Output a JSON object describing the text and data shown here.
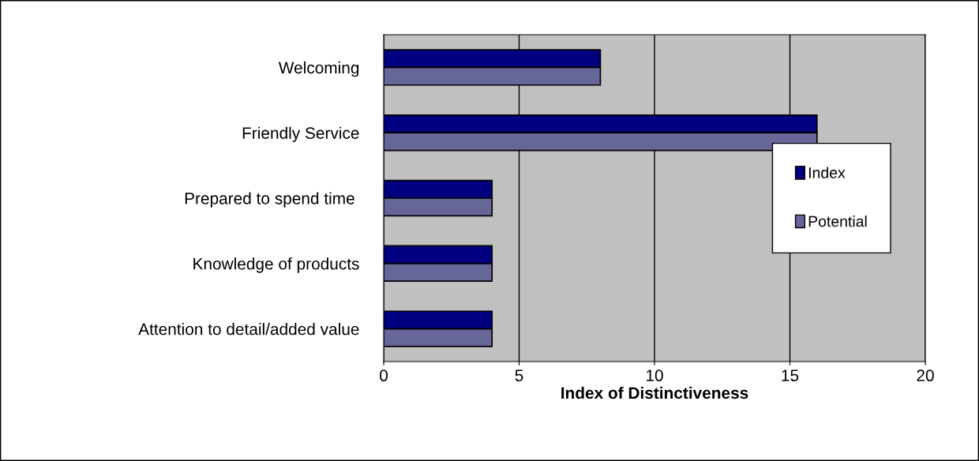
{
  "chart_data": {
    "type": "bar",
    "orientation": "horizontal",
    "categories": [
      "Welcoming",
      "Friendly Service",
      "Prepared to spend time ",
      "Knowledge of products",
      "Attention to detail/added value"
    ],
    "series": [
      {
        "name": "Index",
        "color": "#000080",
        "values": [
          8,
          16,
          4,
          4,
          4
        ]
      },
      {
        "name": "Potential",
        "color": "#666699",
        "values": [
          8,
          16,
          4,
          4,
          4
        ]
      }
    ],
    "xlabel": "Index of Distinctiveness",
    "xlim": [
      0,
      20
    ],
    "xticks": [
      0,
      5,
      10,
      15,
      20
    ],
    "grid": "x",
    "legend": "right"
  }
}
